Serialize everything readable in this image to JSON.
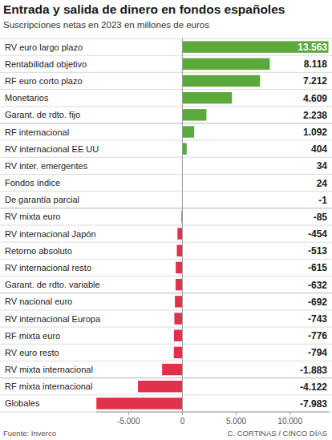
{
  "chart_data": {
    "type": "bar",
    "title": "Entrada y salida de dinero en fondos españoles",
    "subtitle": "Suscripciones netas en 2023 en millones de euros",
    "source": "Fuente: Inverco",
    "credit": "C. CORTINAS / CINCO DÍAS",
    "orientation": "horizontal",
    "categories": [
      "RV euro largo plazo",
      "Rentabilidad objetivo",
      "RF euro corto plazo",
      "Monetarios",
      "Garant. de rdto. fijo",
      "RF internacional",
      "RV internacional EE UU",
      "RV inter. emergentes",
      "Fondos índice",
      "De garantía parcial",
      "RV mixta euro",
      "RV internacional Japón",
      "Retorno absoluto",
      "RV internacional resto",
      "Garant. de rdto. variable",
      "RV nacional euro",
      "RV internacional Europa",
      "RF mixta euro",
      "RV euro resto",
      "RV mixta internacional",
      "RF mixta internacional",
      "Globales"
    ],
    "values": [
      13563,
      8118,
      7212,
      4609,
      2238,
      1092,
      404,
      34,
      24,
      -1,
      -85,
      -454,
      -513,
      -615,
      -632,
      -692,
      -743,
      -776,
      -794,
      -1883,
      -4122,
      -7983
    ],
    "value_labels": [
      "13.563",
      "8.118",
      "7.212",
      "4.609",
      "2.238",
      "1.092",
      "404",
      "34",
      "24",
      "-1",
      "-85",
      "-454",
      "-513",
      "-615",
      "-632",
      "-692",
      "-743",
      "-776",
      "-794",
      "-1.883",
      "-4.122",
      "-7.983"
    ],
    "colors": [
      "#5aa93a",
      "#5aa93a",
      "#5aa93a",
      "#5aa93a",
      "#5aa93a",
      "#5aa93a",
      "#5aa93a",
      "#5aa93a",
      "#5aa93a",
      "#e0304a",
      "#e0304a",
      "#e0304a",
      "#e0304a",
      "#e0304a",
      "#e0304a",
      "#e0304a",
      "#e0304a",
      "#e0304a",
      "#e0304a",
      "#e0304a",
      "#e0304a",
      "#e0304a"
    ],
    "xlim": [
      -8000,
      13600
    ],
    "xticks": [
      {
        "value": -5000,
        "label": "-5.000"
      },
      0,
      {
        "value": 5000,
        "label": "5.000"
      },
      {
        "value": 10000,
        "label": "10.000"
      }
    ],
    "data_labels": true,
    "grid": false
  }
}
